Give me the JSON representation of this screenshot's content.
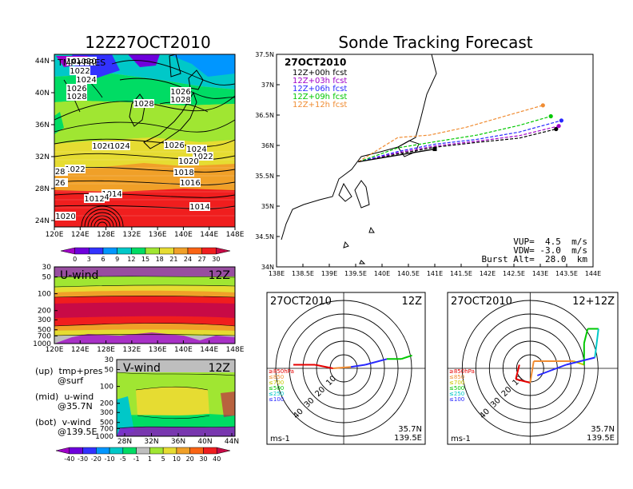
{
  "chart_data": [
    {
      "type": "heatmap",
      "title": "12Z27OCT2010",
      "panel_label": "TMP+PRES",
      "x_ticks": [
        "120E",
        "124E",
        "128E",
        "132E",
        "136E",
        "140E",
        "144E",
        "148E"
      ],
      "y_ticks": [
        "24N",
        "28N",
        "32N",
        "36N",
        "40N",
        "44N"
      ],
      "contour_labels": [
        "1024",
        "1020",
        "1022",
        "1024",
        "1026",
        "1028",
        "1028",
        "1026",
        "1028",
        "1026",
        "1024",
        "1026",
        "1024",
        "1022",
        "1022",
        "1020",
        "1018",
        "1016",
        "1014",
        "1014",
        "1014",
        "1012",
        "1020",
        "026",
        "028"
      ],
      "colorbar_ticks": [
        "0",
        "3",
        "6",
        "9",
        "12",
        "15",
        "18",
        "21",
        "24",
        "27",
        "30"
      ],
      "colorbar_colors": [
        "#a000c8",
        "#6e00dc",
        "#3232ff",
        "#0096ff",
        "#00c8c8",
        "#00dc64",
        "#a0e632",
        "#e6dc32",
        "#f0a028",
        "#fa6414",
        "#f01e1e",
        "#c80a46"
      ]
    },
    {
      "type": "line",
      "title": "Sonde Tracking Forecast",
      "date_label": "27OCT2010",
      "x_ticks": [
        "138E",
        "138.5E",
        "139E",
        "139.5E",
        "140E",
        "140.5E",
        "141E",
        "141.5E",
        "142E",
        "142.5E",
        "143E",
        "143.5E",
        "144E"
      ],
      "y_ticks": [
        "34N",
        "34.5N",
        "35N",
        "35.5N",
        "36N",
        "36.5N",
        "37N",
        "37.5N"
      ],
      "xlim": [
        138,
        144
      ],
      "ylim": [
        34,
        37.5
      ],
      "series": [
        {
          "name": "12Z+00h  fcst",
          "color": "#000000",
          "points": [
            [
              139.55,
              35.73
            ],
            [
              140.3,
              35.86
            ],
            [
              141.0,
              35.97
            ],
            [
              141.8,
              36.05
            ],
            [
              142.6,
              36.12
            ],
            [
              143.3,
              36.27
            ]
          ]
        },
        {
          "name": "12Z+03h  fcst",
          "color": "#a000c8",
          "points": [
            [
              139.55,
              35.73
            ],
            [
              140.3,
              35.88
            ],
            [
              141.0,
              35.99
            ],
            [
              141.8,
              36.07
            ],
            [
              142.6,
              36.16
            ],
            [
              143.35,
              36.32
            ]
          ]
        },
        {
          "name": "12Z+06h  fcst",
          "color": "#2828ff",
          "points": [
            [
              139.55,
              35.73
            ],
            [
              140.3,
              35.9
            ],
            [
              141.0,
              36.02
            ],
            [
              141.8,
              36.1
            ],
            [
              142.6,
              36.22
            ],
            [
              143.4,
              36.41
            ]
          ]
        },
        {
          "name": "12Z+09h  fcst",
          "color": "#00c800",
          "points": [
            [
              139.55,
              35.73
            ],
            [
              140.3,
              35.96
            ],
            [
              141.0,
              36.06
            ],
            [
              141.8,
              36.17
            ],
            [
              142.6,
              36.33
            ],
            [
              143.2,
              36.48
            ]
          ]
        },
        {
          "name": "12Z+12h  fcst",
          "color": "#f08c32",
          "points": [
            [
              139.55,
              35.73
            ],
            [
              140.3,
              36.13
            ],
            [
              140.9,
              36.17
            ],
            [
              141.6,
              36.3
            ],
            [
              142.4,
              36.5
            ],
            [
              143.05,
              36.66
            ]
          ]
        }
      ],
      "annotations": [
        "VUP=  4.5  m/s",
        "VDW= -3.0  m/s",
        "Burst Alt=  28.0  km"
      ]
    },
    {
      "type": "heatmap",
      "title": "U-wind",
      "time_label": "12Z",
      "x_ticks": [
        "120E",
        "124E",
        "128E",
        "132E",
        "136E",
        "140E",
        "144E",
        "148E"
      ],
      "y_ticks": [
        "30",
        "50",
        "100",
        "200",
        "300",
        "500",
        "700",
        "1000"
      ]
    },
    {
      "type": "heatmap",
      "title": "V-wind",
      "time_label": "12Z",
      "x_ticks": [
        "28N",
        "32N",
        "36N",
        "40N",
        "44N"
      ],
      "y_ticks": [
        "30",
        "50",
        "100",
        "200",
        "300",
        "500",
        "700",
        "1000"
      ],
      "colorbar_ticks": [
        "-40",
        "-30",
        "-20",
        "-10",
        "-5",
        "-1",
        "1",
        "5",
        "10",
        "20",
        "30",
        "40"
      ],
      "colorbar_colors": [
        "#a000c8",
        "#6e00dc",
        "#3232ff",
        "#0096ff",
        "#00c8c8",
        "#00dc64",
        "#bebebe",
        "#a0e632",
        "#e6dc32",
        "#f0a028",
        "#fa6414",
        "#f01e1e",
        "#c80a46"
      ]
    },
    {
      "type": "scatter",
      "title": "27OCT2010",
      "time_label": "12Z",
      "ring_labels": [
        "10",
        "20",
        "30",
        "40"
      ],
      "legend": [
        "≥850hPa",
        "≤850",
        "≤700",
        "≤500",
        "≤250",
        "≤100"
      ],
      "legend_colors": [
        "#e60000",
        "#f08c32",
        "#c8c800",
        "#00c800",
        "#00c8c8",
        "#2828ff"
      ],
      "location": [
        "35.7N",
        "139.5E"
      ],
      "unit": "ms-1",
      "hodograph": [
        [
          -0.7,
          0.05,
          "#e60000"
        ],
        [
          -0.4,
          0.05,
          "#e60000"
        ],
        [
          -0.15,
          0.0,
          "#e60000"
        ],
        [
          0.1,
          0.02,
          "#f08c32"
        ],
        [
          0.3,
          0.05,
          "#2828ff"
        ],
        [
          0.6,
          0.13,
          "#2828ff"
        ],
        [
          0.8,
          0.13,
          "#00c800"
        ],
        [
          0.95,
          0.18,
          "#00c800"
        ]
      ]
    },
    {
      "type": "scatter",
      "title": "27OCT2010",
      "time_label": "12+12Z",
      "ring_labels": [
        "10",
        "20",
        "30",
        "40"
      ],
      "legend": [
        "≥850hPa",
        "≤850",
        "≤700",
        "≤500",
        "≤250",
        "≤100"
      ],
      "legend_colors": [
        "#e60000",
        "#f08c32",
        "#c8c800",
        "#00c800",
        "#00c8c8",
        "#2828ff"
      ],
      "location": [
        "35.7N",
        "139.5E"
      ],
      "unit": "ms-1",
      "hodograph": [
        [
          -0.15,
          0.05,
          "#e60000"
        ],
        [
          -0.2,
          -0.15,
          "#e60000"
        ],
        [
          0.0,
          -0.2,
          "#e60000"
        ],
        [
          0.05,
          0.1,
          "#f08c32"
        ],
        [
          0.6,
          0.1,
          "#f08c32"
        ],
        [
          0.75,
          0.05,
          "#c8c800"
        ],
        [
          0.75,
          0.35,
          "#00c800"
        ],
        [
          0.8,
          0.55,
          "#00c800"
        ],
        [
          0.95,
          0.55,
          "#00c800"
        ],
        [
          0.9,
          0.15,
          "#00c8c8"
        ],
        [
          0.5,
          0.05,
          "#2828ff"
        ],
        [
          0.1,
          -0.1,
          "#2828ff"
        ]
      ]
    }
  ],
  "notes": {
    "up": "(up)  tmp+pres",
    "up_sub": "@surf",
    "mid": "(mid)  u-wind",
    "mid_sub": "@35.7N",
    "bot": "(bot)  v-wind",
    "bot_sub": "@139.5E"
  }
}
